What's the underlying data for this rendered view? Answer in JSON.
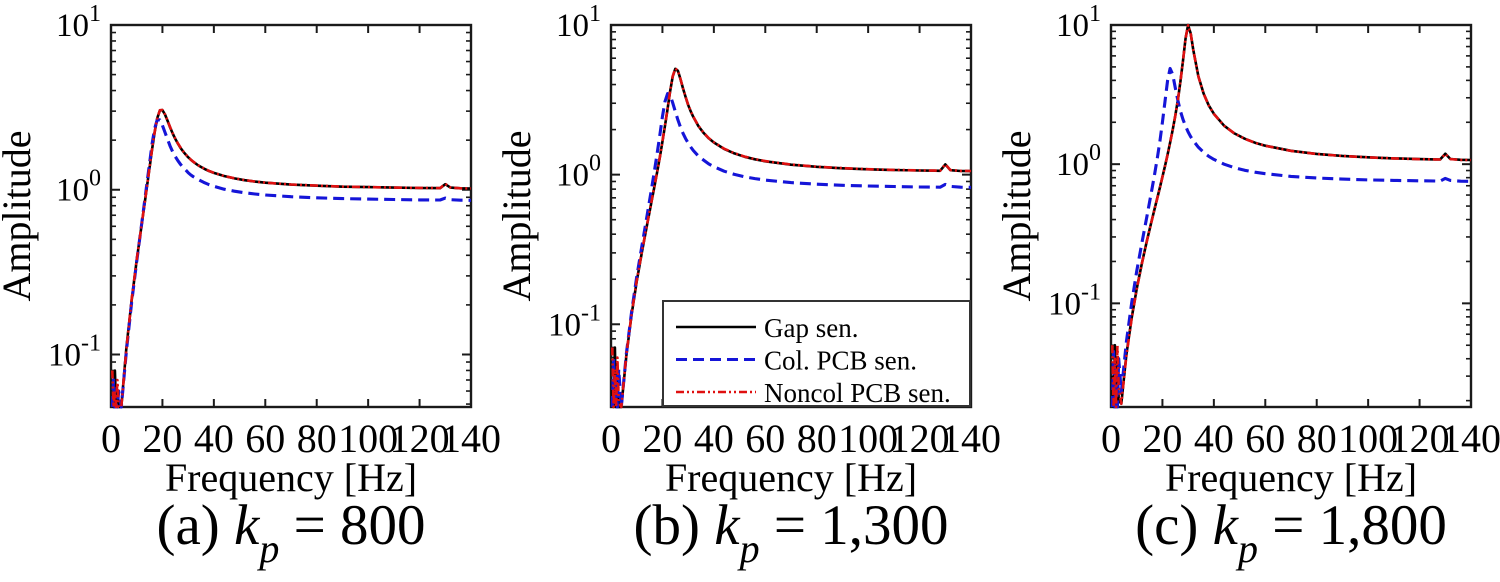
{
  "figure": {
    "background": "#ffffff",
    "axis_color": "#1a1a1a",
    "xlabel": "Frequency [Hz]",
    "ylabel": "Amplitude",
    "x_ticks": [
      0,
      20,
      40,
      60,
      80,
      100,
      120,
      140
    ],
    "y_tick_exponents": [
      1,
      0,
      -1
    ],
    "series_colors": {
      "gap": "#000000",
      "col_pcb": "#1515d8",
      "noncol_pcb": "#df1010"
    },
    "legend": {
      "host_subplot_index": 1,
      "entries": [
        {
          "label": "Gap sen.",
          "color": "#000000",
          "dash": "solid"
        },
        {
          "label": "Col. PCB sen.",
          "color": "#1515d8",
          "dash": "dashed"
        },
        {
          "label": "Noncol PCB sen.",
          "color": "#df1010",
          "dash": "dashdot"
        }
      ]
    }
  },
  "chart_data": [
    {
      "type": "line",
      "title": "(a) kp = 800",
      "caption_prefix": "(a) ",
      "caption_var": "k",
      "caption_sub": "p",
      "caption_rest": " = 800",
      "xlabel": "Frequency [Hz]",
      "ylabel": "Amplitude",
      "xlim": [
        0,
        140
      ],
      "ylim": [
        0.048,
        10
      ],
      "log_y": true,
      "show_legend": false,
      "x": [
        0.5,
        1,
        1.5,
        2,
        2.5,
        3,
        4,
        6,
        8,
        10,
        12,
        14,
        16,
        17,
        18,
        19,
        20,
        21,
        22,
        23,
        24,
        25,
        26,
        27,
        28,
        29,
        30,
        31,
        32,
        34,
        36,
        38,
        40,
        44,
        48,
        52,
        56,
        60,
        70,
        80,
        90,
        100,
        110,
        120,
        126,
        128,
        130,
        132,
        136,
        140
      ],
      "series": [
        {
          "name": "Gap sen.",
          "color": "#000000",
          "dash": "solid",
          "values": [
            0.05,
            0.015,
            0.08,
            0.02,
            0.06,
            0.03,
            0.046,
            0.11,
            0.212,
            0.373,
            0.627,
            1.049,
            1.762,
            2.246,
            2.726,
            3.03,
            3.046,
            2.862,
            2.619,
            2.39,
            2.196,
            2.035,
            1.906,
            1.8,
            1.712,
            1.638,
            1.577,
            1.524,
            1.478,
            1.404,
            1.348,
            1.302,
            1.266,
            1.211,
            1.172,
            1.143,
            1.121,
            1.104,
            1.075,
            1.058,
            1.044,
            1.037,
            1.03,
            1.025,
            1.023,
            1.022,
            1.08,
            1.03,
            1.02,
            1.018
          ]
        },
        {
          "name": "Col. PCB sen.",
          "color": "#1515d8",
          "dash": "dashed",
          "values": [
            0.03,
            0.07,
            0.018,
            0.05,
            0.025,
            0.06,
            0.044,
            0.105,
            0.206,
            0.367,
            0.635,
            1.1,
            1.9,
            2.36,
            2.66,
            2.656,
            2.46,
            2.23,
            2.02,
            1.84,
            1.7,
            1.59,
            1.5,
            1.43,
            1.37,
            1.32,
            1.27,
            1.23,
            1.2,
            1.15,
            1.11,
            1.076,
            1.049,
            1.008,
            0.98,
            0.958,
            0.942,
            0.929,
            0.907,
            0.893,
            0.883,
            0.877,
            0.873,
            0.868,
            0.866,
            0.866,
            0.89,
            0.87,
            0.864,
            0.863
          ]
        },
        {
          "name": "Noncol PCB sen.",
          "color": "#df1010",
          "dash": "dashdot",
          "values": [
            0.08,
            0.025,
            0.06,
            0.015,
            0.07,
            0.04,
            0.047,
            0.108,
            0.215,
            0.375,
            0.63,
            1.05,
            1.77,
            2.25,
            2.73,
            3.04,
            3.05,
            2.87,
            2.62,
            2.4,
            2.2,
            2.04,
            1.91,
            1.81,
            1.715,
            1.64,
            1.58,
            1.525,
            1.48,
            1.405,
            1.35,
            1.303,
            1.267,
            1.212,
            1.173,
            1.144,
            1.122,
            1.105,
            1.076,
            1.059,
            1.045,
            1.038,
            1.031,
            1.026,
            1.024,
            1.023,
            1.085,
            1.032,
            1.021,
            1.019
          ]
        }
      ]
    },
    {
      "type": "line",
      "title": "(b) kp = 1,300",
      "caption_prefix": "(b) ",
      "caption_var": "k",
      "caption_sub": "p",
      "caption_rest": " = 1,300",
      "xlabel": "Frequency [Hz]",
      "ylabel": "Amplitude",
      "xlim": [
        0,
        140
      ],
      "ylim": [
        0.028,
        10
      ],
      "log_y": true,
      "show_legend": true,
      "x": [
        0.5,
        1,
        1.5,
        2,
        2.5,
        3,
        4,
        6,
        8,
        10,
        12,
        14,
        16,
        17,
        18,
        19,
        20,
        21,
        22,
        23,
        24,
        25,
        26,
        27,
        28,
        29,
        30,
        31,
        32,
        34,
        36,
        38,
        40,
        44,
        48,
        52,
        56,
        60,
        70,
        80,
        90,
        100,
        110,
        120,
        126,
        128,
        130,
        132,
        136,
        140
      ],
      "series": [
        {
          "name": "Gap sen.",
          "color": "#000000",
          "dash": "solid",
          "values": [
            0.04,
            0.012,
            0.07,
            0.018,
            0.05,
            0.025,
            0.027,
            0.062,
            0.116,
            0.193,
            0.303,
            0.46,
            0.692,
            0.851,
            1.052,
            1.312,
            1.657,
            2.123,
            2.76,
            3.6,
            4.53,
            5.1,
            4.94,
            4.36,
            3.77,
            3.3,
            2.93,
            2.65,
            2.43,
            2.11,
            1.9,
            1.75,
            1.64,
            1.485,
            1.386,
            1.316,
            1.266,
            1.228,
            1.165,
            1.128,
            1.103,
            1.086,
            1.074,
            1.065,
            1.062,
            1.061,
            1.17,
            1.07,
            1.058,
            1.056
          ]
        },
        {
          "name": "Col. PCB sen.",
          "color": "#1515d8",
          "dash": "dashed",
          "values": [
            0.02,
            0.06,
            0.015,
            0.045,
            0.02,
            0.05,
            0.027,
            0.064,
            0.121,
            0.207,
            0.334,
            0.529,
            0.847,
            1.085,
            1.408,
            1.85,
            2.43,
            3.08,
            3.48,
            3.39,
            3.02,
            2.64,
            2.32,
            2.08,
            1.89,
            1.74,
            1.63,
            1.53,
            1.45,
            1.33,
            1.25,
            1.18,
            1.13,
            1.054,
            1.004,
            0.968,
            0.941,
            0.92,
            0.885,
            0.863,
            0.849,
            0.84,
            0.833,
            0.827,
            0.825,
            0.824,
            0.86,
            0.835,
            0.824,
            0.822
          ]
        },
        {
          "name": "Noncol PCB sen.",
          "color": "#df1010",
          "dash": "dashdot",
          "values": [
            0.07,
            0.02,
            0.05,
            0.012,
            0.06,
            0.03,
            0.028,
            0.063,
            0.117,
            0.195,
            0.305,
            0.462,
            0.695,
            0.855,
            1.056,
            1.317,
            1.663,
            2.13,
            2.77,
            3.61,
            4.54,
            5.12,
            4.95,
            4.37,
            3.78,
            3.31,
            2.94,
            2.66,
            2.44,
            2.12,
            1.905,
            1.755,
            1.645,
            1.49,
            1.39,
            1.32,
            1.27,
            1.232,
            1.168,
            1.13,
            1.105,
            1.088,
            1.076,
            1.067,
            1.064,
            1.063,
            1.175,
            1.072,
            1.06,
            1.058
          ]
        }
      ]
    },
    {
      "type": "line",
      "title": "(c) kp = 1,800",
      "caption_prefix": "(c) ",
      "caption_var": "k",
      "caption_sub": "p",
      "caption_rest": " = 1,800",
      "xlabel": "Frequency [Hz]",
      "ylabel": "Amplitude",
      "xlim": [
        0,
        140
      ],
      "ylim": [
        0.018,
        10
      ],
      "log_y": true,
      "show_legend": false,
      "x": [
        0.5,
        1,
        1.5,
        2,
        2.5,
        3,
        4,
        6,
        8,
        10,
        12,
        14,
        16,
        17,
        18,
        19,
        20,
        21,
        22,
        23,
        24,
        25,
        26,
        27,
        28,
        29,
        30,
        31,
        32,
        34,
        36,
        38,
        40,
        44,
        48,
        52,
        56,
        60,
        70,
        80,
        90,
        100,
        110,
        120,
        126,
        128,
        130,
        132,
        136,
        140
      ],
      "series": [
        {
          "name": "Gap sen.",
          "color": "#000000",
          "dash": "solid",
          "values": [
            0.03,
            0.01,
            0.05,
            0.012,
            0.04,
            0.02,
            0.019,
            0.043,
            0.078,
            0.127,
            0.194,
            0.284,
            0.404,
            0.481,
            0.571,
            0.679,
            0.81,
            0.97,
            1.172,
            1.429,
            1.769,
            2.233,
            2.901,
            3.916,
            5.546,
            8.05,
            10.0,
            8.69,
            6.61,
            4.27,
            3.22,
            2.65,
            2.3,
            1.89,
            1.665,
            1.523,
            1.426,
            1.357,
            1.248,
            1.186,
            1.147,
            1.12,
            1.101,
            1.087,
            1.083,
            1.081,
            1.19,
            1.09,
            1.075,
            1.072
          ]
        },
        {
          "name": "Col. PCB sen.",
          "color": "#1515d8",
          "dash": "dashed",
          "values": [
            0.015,
            0.045,
            0.012,
            0.035,
            0.015,
            0.04,
            0.023,
            0.053,
            0.1,
            0.17,
            0.272,
            0.425,
            0.671,
            0.854,
            1.104,
            1.461,
            1.996,
            2.824,
            4.0,
            4.867,
            4.42,
            3.535,
            2.866,
            2.412,
            2.099,
            1.874,
            1.706,
            1.576,
            1.474,
            1.323,
            1.218,
            1.14,
            1.082,
            0.999,
            0.943,
            0.904,
            0.876,
            0.854,
            0.817,
            0.795,
            0.781,
            0.771,
            0.764,
            0.759,
            0.757,
            0.756,
            0.79,
            0.765,
            0.754,
            0.752
          ]
        },
        {
          "name": "Noncol PCB sen.",
          "color": "#df1010",
          "dash": "dashdot",
          "values": [
            0.05,
            0.015,
            0.04,
            0.01,
            0.05,
            0.025,
            0.019,
            0.042,
            0.077,
            0.126,
            0.193,
            0.283,
            0.402,
            0.48,
            0.57,
            0.677,
            0.808,
            0.968,
            1.17,
            1.425,
            1.765,
            2.23,
            2.895,
            3.91,
            5.54,
            8.04,
            9.95,
            8.68,
            6.6,
            4.26,
            3.21,
            2.645,
            2.295,
            1.888,
            1.663,
            1.521,
            1.424,
            1.355,
            1.246,
            1.184,
            1.145,
            1.118,
            1.1,
            1.086,
            1.082,
            1.08,
            1.185,
            1.088,
            1.073,
            1.07
          ]
        }
      ]
    }
  ]
}
